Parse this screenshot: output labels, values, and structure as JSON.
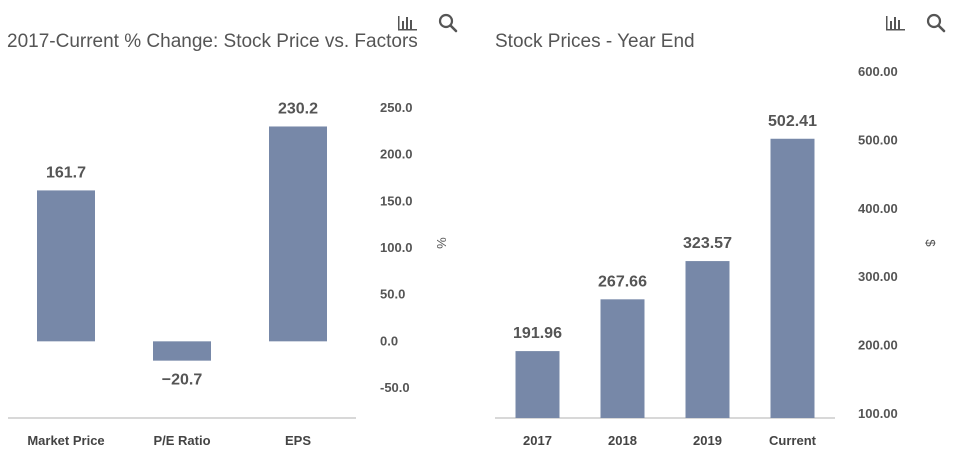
{
  "colors": {
    "bar": "#7788a8",
    "axis": "#cccccc",
    "text": "#555555"
  },
  "icons": {
    "bar_tool": "bar-chart-icon",
    "zoom_tool": "search-icon"
  },
  "chart_data": [
    {
      "type": "bar",
      "title": "2017-Current % Change: Stock Price vs. Factors",
      "categories": [
        "Market Price",
        "P/E Ratio",
        "EPS"
      ],
      "values": [
        161.7,
        -20.7,
        230.2
      ],
      "value_labels": [
        "161.7",
        "−20.7",
        "230.2"
      ],
      "ylabel": "%",
      "ylim": [
        -70,
        270
      ],
      "yticks": [
        -50,
        0,
        50,
        100,
        150,
        200,
        250
      ],
      "ytick_labels": [
        "-50.0",
        "0.0",
        "50.0",
        "100.0",
        "150.0",
        "200.0",
        "250.0"
      ],
      "grid": false
    },
    {
      "type": "bar",
      "title": "Stock Prices - Year End",
      "categories": [
        "2017",
        "2018",
        "2019",
        "Current"
      ],
      "values": [
        191.96,
        267.66,
        323.57,
        502.41
      ],
      "value_labels": [
        "191.96",
        "267.66",
        "323.57",
        "502.41"
      ],
      "ylabel": "$",
      "ylim": [
        90,
        610
      ],
      "yticks": [
        100,
        200,
        300,
        400,
        500,
        600
      ],
      "ytick_labels": [
        "100.00",
        "200.00",
        "300.00",
        "400.00",
        "500.00",
        "600.00"
      ],
      "grid": false
    }
  ]
}
